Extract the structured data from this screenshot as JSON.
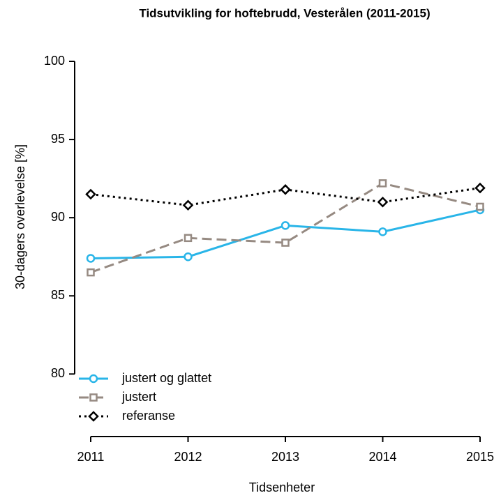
{
  "chart_data": {
    "type": "line",
    "title": "Tidsutvikling for hoftebrudd, Vesterålen (2011-2015)",
    "x_label": "Tidsenheter",
    "y_label": "30-dagers overlevelse [%]",
    "x": [
      2011,
      2012,
      2013,
      2014,
      2015
    ],
    "xlim": [
      2011,
      2015
    ],
    "xticks": [
      2011,
      2012,
      2013,
      2014,
      2015
    ],
    "ylim": [
      76,
      100
    ],
    "yticks": [
      80,
      85,
      90,
      95,
      100
    ],
    "legend": "bottom-left",
    "series": [
      {
        "name": "justert og glattet",
        "color": "#29b5e8",
        "marker": "circle",
        "dash": "solid",
        "values": [
          87.4,
          87.5,
          89.5,
          89.1,
          90.5
        ]
      },
      {
        "name": "justert",
        "color": "#968a82",
        "marker": "square",
        "dash": "dashed",
        "values": [
          86.5,
          88.7,
          88.4,
          92.2,
          90.7
        ]
      },
      {
        "name": "referanse",
        "color": "#000000",
        "marker": "diamond",
        "dash": "dotted",
        "values": [
          91.5,
          90.8,
          91.8,
          91.0,
          91.9
        ]
      }
    ]
  }
}
